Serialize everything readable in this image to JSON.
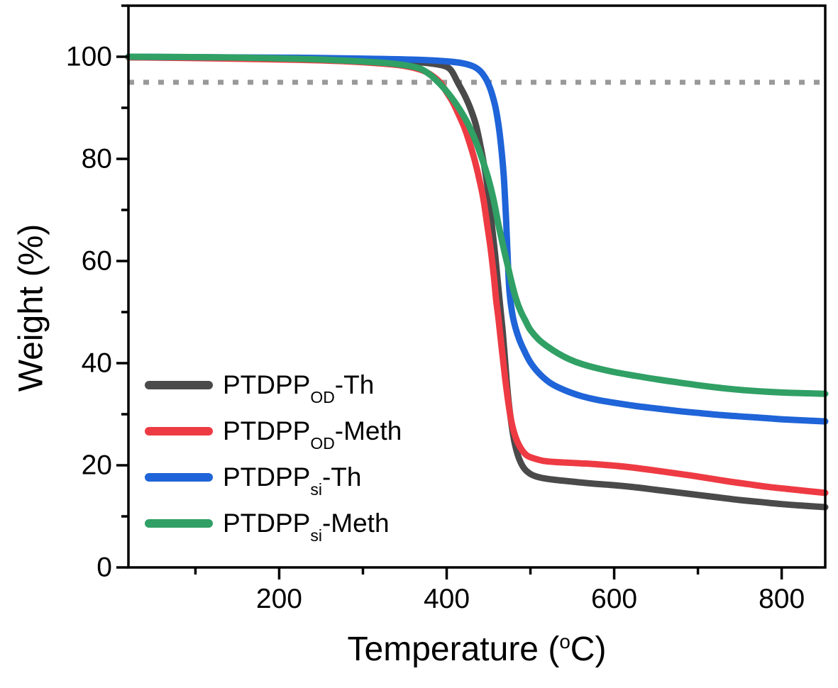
{
  "figure": {
    "x_axis_title": {
      "pre": "Temperature (",
      "sup": "o",
      "post": "C)"
    },
    "y_axis_title": "Weight (%)"
  },
  "chart_data": {
    "type": "line",
    "title": "",
    "xlabel": "Temperature (°C)",
    "ylabel": "Weight (%)",
    "xlim": [
      20,
      852
    ],
    "ylim": [
      0,
      110
    ],
    "grid": false,
    "legend_position": "inside lower-left",
    "x_major_ticks": [
      200,
      400,
      600,
      800
    ],
    "x_tick_labels": [
      "200",
      "400",
      "600",
      "800"
    ],
    "x_minor_ticks": [
      100,
      300,
      500,
      700
    ],
    "y_major_ticks": [
      0,
      20,
      40,
      60,
      80,
      100
    ],
    "y_tick_labels": [
      "0",
      "20",
      "40",
      "60",
      "80",
      "100"
    ],
    "y_minor_ticks": [
      10,
      30,
      50,
      70,
      90,
      110
    ],
    "axis_color": "#000000",
    "reference_line": {
      "y": 95,
      "style": "dotted",
      "color": "#999999",
      "meaning": "95% residual weight (5% loss) level"
    },
    "series": [
      {
        "id": "ptdpp-od-th",
        "label": {
          "base": "PTDPP",
          "sub": "OD",
          "rest": "-Th"
        },
        "color": "#4a4a4a",
        "points": [
          [
            20,
            99.9
          ],
          [
            120,
            99.8
          ],
          [
            220,
            99.6
          ],
          [
            300,
            99.3
          ],
          [
            345,
            99.1
          ],
          [
            375,
            98.8
          ],
          [
            395,
            98.3
          ],
          [
            405,
            97.4
          ],
          [
            413,
            95
          ],
          [
            421,
            92.6
          ],
          [
            428,
            90
          ],
          [
            435,
            86.6
          ],
          [
            441,
            82
          ],
          [
            446,
            77.5
          ],
          [
            450,
            73
          ],
          [
            454,
            67
          ],
          [
            458,
            61
          ],
          [
            461,
            56
          ],
          [
            464,
            51
          ],
          [
            467,
            46
          ],
          [
            470,
            40
          ],
          [
            473,
            34
          ],
          [
            477,
            28.5
          ],
          [
            481,
            24.5
          ],
          [
            486,
            21.5
          ],
          [
            492,
            19.5
          ],
          [
            499,
            18.4
          ],
          [
            507,
            17.8
          ],
          [
            518,
            17.4
          ],
          [
            532,
            17.1
          ],
          [
            550,
            16.8
          ],
          [
            575,
            16.4
          ],
          [
            600,
            16.1
          ],
          [
            625,
            15.7
          ],
          [
            650,
            15.2
          ],
          [
            675,
            14.7
          ],
          [
            700,
            14.2
          ],
          [
            725,
            13.7
          ],
          [
            750,
            13.2
          ],
          [
            775,
            12.8
          ],
          [
            800,
            12.4
          ],
          [
            825,
            12.1
          ],
          [
            852,
            11.8
          ]
        ]
      },
      {
        "id": "ptdpp-od-meth",
        "label": {
          "base": "PTDPP",
          "sub": "OD",
          "rest": "-Meth"
        },
        "color": "#ee3b43",
        "points": [
          [
            20,
            99.9
          ],
          [
            120,
            99.7
          ],
          [
            220,
            99.4
          ],
          [
            280,
            99.1
          ],
          [
            320,
            98.7
          ],
          [
            350,
            98.2
          ],
          [
            368,
            97.5
          ],
          [
            380,
            96.6
          ],
          [
            392,
            95
          ],
          [
            399,
            93.3
          ],
          [
            407,
            91.2
          ],
          [
            414,
            88.8
          ],
          [
            421,
            86.2
          ],
          [
            427,
            83.3
          ],
          [
            433,
            80
          ],
          [
            439,
            76
          ],
          [
            444,
            72
          ],
          [
            448,
            67.5
          ],
          [
            452,
            63
          ],
          [
            456,
            57.5
          ],
          [
            459,
            52.5
          ],
          [
            462,
            48.5
          ],
          [
            466,
            42.5
          ],
          [
            470,
            36.8
          ],
          [
            474,
            31.8
          ],
          [
            478,
            28
          ],
          [
            483,
            25.2
          ],
          [
            489,
            23.2
          ],
          [
            496,
            21.9
          ],
          [
            505,
            21.3
          ],
          [
            518,
            20.8
          ],
          [
            535,
            20.6
          ],
          [
            558,
            20.4
          ],
          [
            580,
            20.2
          ],
          [
            602,
            19.9
          ],
          [
            625,
            19.5
          ],
          [
            648,
            19
          ],
          [
            670,
            18.5
          ],
          [
            692,
            18
          ],
          [
            715,
            17.4
          ],
          [
            738,
            16.8
          ],
          [
            760,
            16.3
          ],
          [
            782,
            15.8
          ],
          [
            805,
            15.4
          ],
          [
            828,
            15
          ],
          [
            852,
            14.6
          ]
        ]
      },
      {
        "id": "ptdpp-si-th",
        "label": {
          "base": "PTDPP",
          "sub": "si",
          "rest": "-Th"
        },
        "color": "#1f64d8",
        "points": [
          [
            20,
            100
          ],
          [
            120,
            99.9
          ],
          [
            220,
            99.8
          ],
          [
            310,
            99.6
          ],
          [
            365,
            99.4
          ],
          [
            400,
            99.1
          ],
          [
            420,
            98.7
          ],
          [
            432,
            98.1
          ],
          [
            440,
            97.2
          ],
          [
            446,
            95.9
          ],
          [
            450,
            94.6
          ],
          [
            454,
            92.8
          ],
          [
            458,
            90.3
          ],
          [
            461,
            87.6
          ],
          [
            464,
            84
          ],
          [
            467,
            79
          ],
          [
            469,
            74.5
          ],
          [
            471,
            68
          ],
          [
            473,
            60
          ],
          [
            475,
            54
          ],
          [
            478,
            50
          ],
          [
            482,
            47
          ],
          [
            487,
            44.5
          ],
          [
            493,
            42.3
          ],
          [
            499,
            40.4
          ],
          [
            506,
            38.8
          ],
          [
            514,
            37.4
          ],
          [
            523,
            36.2
          ],
          [
            534,
            35.2
          ],
          [
            547,
            34.3
          ],
          [
            562,
            33.5
          ],
          [
            580,
            32.8
          ],
          [
            602,
            32.2
          ],
          [
            626,
            31.6
          ],
          [
            652,
            31.1
          ],
          [
            678,
            30.6
          ],
          [
            704,
            30.2
          ],
          [
            730,
            29.8
          ],
          [
            757,
            29.5
          ],
          [
            784,
            29.2
          ],
          [
            812,
            28.9
          ],
          [
            852,
            28.6
          ]
        ]
      },
      {
        "id": "ptdpp-si-meth",
        "label": {
          "base": "PTDPP",
          "sub": "si",
          "rest": "-Meth"
        },
        "color": "#30a065",
        "points": [
          [
            20,
            100
          ],
          [
            120,
            99.9
          ],
          [
            220,
            99.6
          ],
          [
            285,
            99.2
          ],
          [
            325,
            98.8
          ],
          [
            352,
            98.3
          ],
          [
            368,
            97.7
          ],
          [
            380,
            96.5
          ],
          [
            390,
            95
          ],
          [
            399,
            93.4
          ],
          [
            408,
            91.5
          ],
          [
            417,
            89.3
          ],
          [
            425,
            87
          ],
          [
            432,
            84.5
          ],
          [
            438,
            82
          ],
          [
            444,
            79.2
          ],
          [
            450,
            76
          ],
          [
            456,
            72
          ],
          [
            462,
            67
          ],
          [
            468,
            62.5
          ],
          [
            473,
            59
          ],
          [
            478,
            55.5
          ],
          [
            483,
            52.5
          ],
          [
            488,
            50.3
          ],
          [
            494,
            48.3
          ],
          [
            500,
            46.5
          ],
          [
            510,
            44.6
          ],
          [
            520,
            43.3
          ],
          [
            533,
            41.9
          ],
          [
            546,
            40.8
          ],
          [
            562,
            39.8
          ],
          [
            580,
            39
          ],
          [
            602,
            38.2
          ],
          [
            626,
            37.5
          ],
          [
            652,
            36.8
          ],
          [
            678,
            36.2
          ],
          [
            704,
            35.6
          ],
          [
            730,
            35.1
          ],
          [
            756,
            34.7
          ],
          [
            782,
            34.4
          ],
          [
            808,
            34.2
          ],
          [
            830,
            34.1
          ],
          [
            852,
            34
          ]
        ]
      }
    ]
  }
}
